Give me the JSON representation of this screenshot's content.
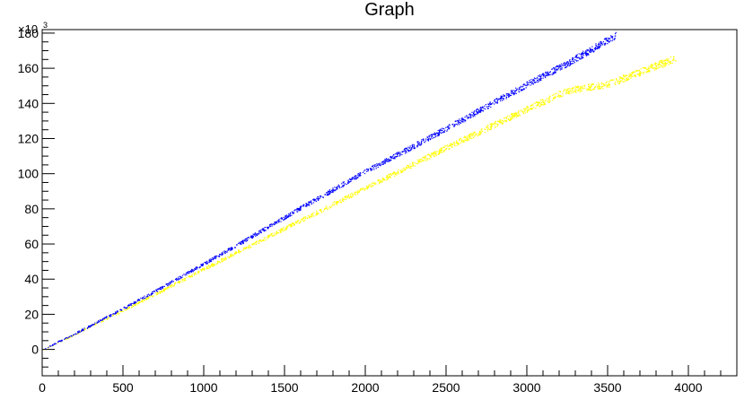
{
  "chart_data": {
    "type": "scatter",
    "title": "Graph",
    "xlabel": "",
    "ylabel": "",
    "y_multiplier": "×10",
    "y_multiplier_exponent": "3",
    "xlim": [
      0,
      4300
    ],
    "ylim": [
      -15,
      182
    ],
    "x_ticks": [
      0,
      500,
      1000,
      1500,
      2000,
      2500,
      3000,
      3500,
      4000
    ],
    "x_tick_labels": [
      "0",
      "500",
      "1000",
      "1500",
      "2000",
      "2500",
      "3000",
      "3500",
      "4000"
    ],
    "y_ticks": [
      0,
      20,
      40,
      60,
      80,
      100,
      120,
      140,
      160,
      180
    ],
    "y_tick_labels": [
      "0",
      "20",
      "40",
      "60",
      "80",
      "100",
      "120",
      "140",
      "160",
      "180"
    ],
    "grid": false,
    "legend": "none",
    "series": [
      {
        "color": "#0000ff",
        "x": [
          0,
          250,
          500,
          750,
          1000,
          1250,
          1500,
          1750,
          2000,
          2250,
          2500,
          2750,
          3000,
          3250,
          3550
        ],
        "y": [
          0,
          11.5,
          23.5,
          36,
          49,
          62,
          75.5,
          88.5,
          101.5,
          113.5,
          126,
          138.5,
          151,
          163,
          179
        ]
      },
      {
        "color": "#ffff00",
        "x": [
          0,
          250,
          500,
          750,
          1000,
          1250,
          1500,
          1750,
          2000,
          2250,
          2500,
          2750,
          3000,
          3250,
          3500,
          3920
        ],
        "y": [
          0,
          11,
          22.5,
          34,
          46,
          57.5,
          69,
          80.5,
          92,
          103.5,
          115,
          126,
          137,
          147.5,
          151,
          166
        ]
      }
    ]
  }
}
